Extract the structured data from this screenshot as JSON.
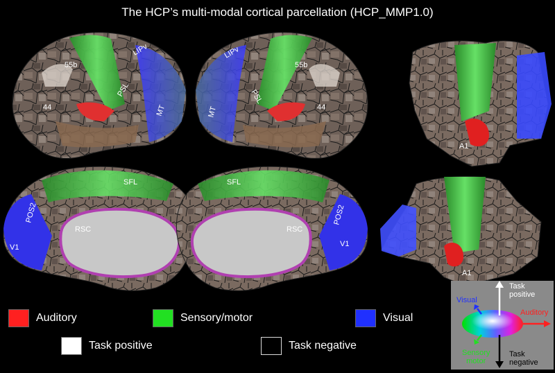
{
  "title": "The HCP’s multi-modal cortical parcellation (HCP_MMP1.0)",
  "area_labels": {
    "lipv": "LIPv",
    "b55": "55b",
    "psl": "PSL",
    "a44": "44",
    "mt": "MT",
    "sfl": "SFL",
    "pos2": "POS2",
    "rsc": "RSC",
    "v1": "V1",
    "a1": "A1"
  },
  "legend": {
    "auditory": "Auditory",
    "sensory_motor": "Sensory/motor",
    "visual": "Visual",
    "task_positive": "Task positive",
    "task_negative": "Task negative"
  },
  "key": {
    "visual": "Visual",
    "auditory": "Auditory",
    "task_positive_1": "Task",
    "task_positive_2": "positive",
    "task_negative_1": "Task",
    "task_negative_2": "negative",
    "sensory_1": "Sensory",
    "sensory_2": "motor"
  },
  "colors": {
    "auditory": "#ff2020",
    "sensory_motor": "#22e022",
    "visual": "#2030ff",
    "task_positive": "#ffffff",
    "task_negative": "#000000",
    "background": "#000000"
  }
}
